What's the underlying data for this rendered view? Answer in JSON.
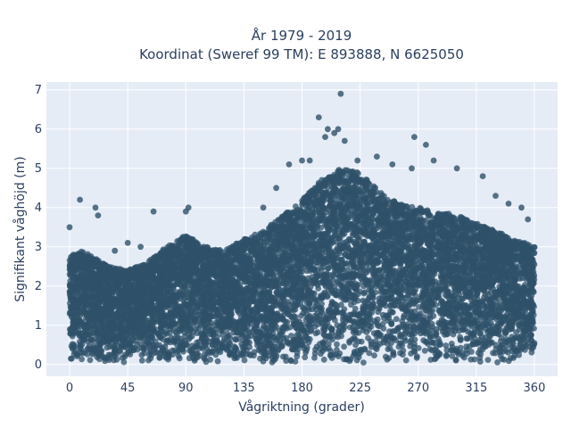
{
  "chart_data": {
    "type": "scatter",
    "title_lines": [
      "År 1979 - 2019",
      "Koordinat (Sweref 99 TM): E 893888, N 6625050"
    ],
    "xlabel": "Vågriktning (grader)",
    "ylabel": "Signifikant våghöjd (m)",
    "xlim": [
      -18,
      378
    ],
    "ylim": [
      -0.3,
      7.2
    ],
    "x_ticks": [
      0,
      45,
      90,
      135,
      180,
      225,
      270,
      315,
      360
    ],
    "y_ticks": [
      0,
      1,
      2,
      3,
      4,
      5,
      6,
      7
    ],
    "grid": true,
    "legend": "none",
    "colors": {
      "marker": "#2f5169",
      "plot_bg": "#e5ecf6",
      "grid": "#ffffff",
      "text": "#2a3f5f"
    },
    "envelope_upper": [
      [
        0,
        2.8
      ],
      [
        10,
        2.9
      ],
      [
        20,
        2.7
      ],
      [
        30,
        2.5
      ],
      [
        45,
        2.4
      ],
      [
        60,
        2.6
      ],
      [
        75,
        3.0
      ],
      [
        90,
        3.3
      ],
      [
        105,
        3.0
      ],
      [
        120,
        2.9
      ],
      [
        135,
        3.2
      ],
      [
        150,
        3.4
      ],
      [
        165,
        3.8
      ],
      [
        180,
        4.2
      ],
      [
        195,
        4.7
      ],
      [
        210,
        5.0
      ],
      [
        225,
        4.9
      ],
      [
        240,
        4.4
      ],
      [
        255,
        4.1
      ],
      [
        270,
        4.0
      ],
      [
        285,
        3.9
      ],
      [
        300,
        3.8
      ],
      [
        315,
        3.6
      ],
      [
        330,
        3.4
      ],
      [
        345,
        3.2
      ],
      [
        360,
        3.0
      ]
    ],
    "outliers": [
      [
        0,
        3.5
      ],
      [
        8,
        4.2
      ],
      [
        20,
        4.0
      ],
      [
        22,
        3.8
      ],
      [
        35,
        2.9
      ],
      [
        45,
        3.1
      ],
      [
        55,
        3.0
      ],
      [
        65,
        3.9
      ],
      [
        90,
        3.9
      ],
      [
        92,
        4.0
      ],
      [
        150,
        4.0
      ],
      [
        160,
        4.5
      ],
      [
        170,
        5.1
      ],
      [
        180,
        5.2
      ],
      [
        186,
        5.2
      ],
      [
        193,
        6.3
      ],
      [
        198,
        5.8
      ],
      [
        200,
        6.0
      ],
      [
        205,
        5.9
      ],
      [
        208,
        6.0
      ],
      [
        210,
        6.9
      ],
      [
        213,
        5.7
      ],
      [
        223,
        5.2
      ],
      [
        238,
        5.3
      ],
      [
        250,
        5.1
      ],
      [
        265,
        5.0
      ],
      [
        267,
        5.8
      ],
      [
        276,
        5.6
      ],
      [
        282,
        5.2
      ],
      [
        300,
        5.0
      ],
      [
        320,
        4.8
      ],
      [
        330,
        4.3
      ],
      [
        340,
        4.1
      ],
      [
        350,
        4.0
      ],
      [
        355,
        3.7
      ]
    ]
  }
}
